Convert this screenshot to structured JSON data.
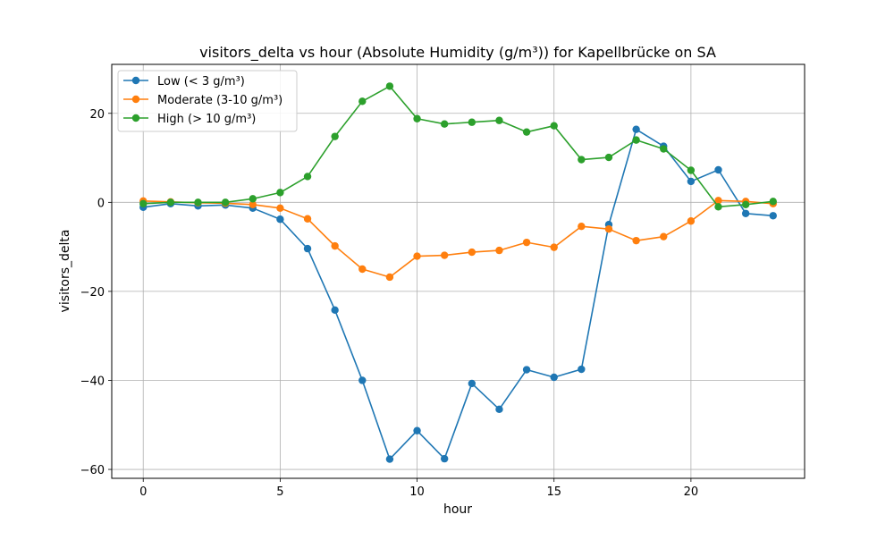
{
  "chart_data": {
    "type": "line",
    "title": "visitors_delta vs hour (Absolute Humidity (g/m³)) for Kapellbrücke on SA",
    "xlabel": "hour",
    "ylabel": "visitors_delta",
    "xlim": [
      -1.15,
      24.15
    ],
    "ylim": [
      -62,
      31
    ],
    "xticks": [
      0,
      5,
      10,
      15,
      20
    ],
    "yticks": [
      -60,
      -40,
      -20,
      0,
      20
    ],
    "xtick_labels": [
      "0",
      "5",
      "10",
      "15",
      "20"
    ],
    "ytick_labels": [
      "−60",
      "−40",
      "−20",
      "0",
      "20"
    ],
    "grid": true,
    "legend_position": "upper left",
    "x": [
      0,
      1,
      2,
      3,
      4,
      5,
      6,
      7,
      8,
      9,
      10,
      11,
      12,
      13,
      14,
      15,
      16,
      17,
      18,
      19,
      20,
      21,
      22,
      23
    ],
    "series": [
      {
        "name": "Low (< 3 g/m³)",
        "color": "#1f77b4",
        "values": [
          -1.1,
          -0.3,
          -0.8,
          -0.6,
          -1.3,
          -3.8,
          -10.4,
          -24.2,
          -40.0,
          -57.7,
          -51.3,
          -57.6,
          -40.7,
          -46.5,
          -37.6,
          -39.3,
          -37.5,
          -5.0,
          16.4,
          12.6,
          4.7,
          7.3,
          -2.5,
          -3.0
        ]
      },
      {
        "name": "Moderate (3-10 g/m³)",
        "color": "#ff7f0e",
        "values": [
          0.3,
          0.1,
          -0.1,
          -0.2,
          -0.5,
          -1.3,
          -3.7,
          -9.8,
          -15.0,
          -16.8,
          -12.1,
          -11.9,
          -11.2,
          -10.8,
          -9.0,
          -10.1,
          -5.4,
          -6.0,
          -8.6,
          -7.7,
          -4.2,
          0.4,
          0.2,
          -0.3
        ]
      },
      {
        "name": "High (> 10 g/m³)",
        "color": "#2ca02c",
        "values": [
          -0.3,
          0.0,
          0.0,
          0.0,
          0.8,
          2.2,
          5.8,
          14.8,
          22.7,
          26.1,
          18.8,
          17.6,
          18.0,
          18.4,
          15.8,
          17.2,
          9.6,
          10.1,
          14.0,
          12.0,
          7.2,
          -1.0,
          -0.5,
          0.2
        ]
      }
    ]
  }
}
